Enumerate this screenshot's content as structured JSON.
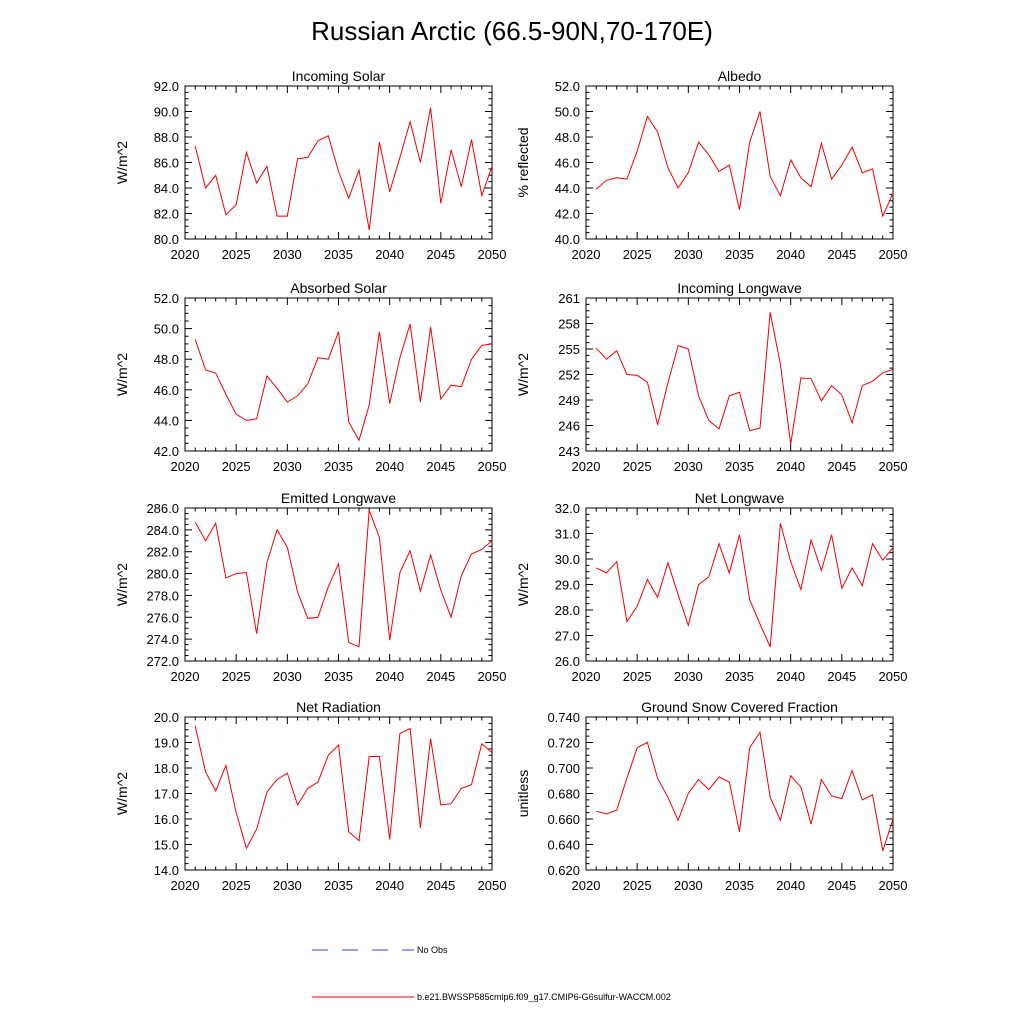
{
  "title": "Russian Arctic (66.5-90N,70-170E)",
  "colors": {
    "model": "#ee0000",
    "obs": "#3344cc",
    "axis": "#000000"
  },
  "legend": {
    "obs_label": "No Obs",
    "model_label": "b.e21.BWSSP585cmip6.f09_g17.CMIP6-G6sulfur-WACCM.002"
  },
  "chart_data": [
    {
      "type": "line",
      "title": "Incoming Solar",
      "xlabel": "",
      "ylabel": "W/m^2",
      "xlim": [
        2020,
        2050
      ],
      "ylim": [
        80,
        92
      ],
      "xticks": [
        2020,
        2025,
        2030,
        2035,
        2040,
        2045,
        2050
      ],
      "yticks": [
        "80.0",
        "82.0",
        "84.0",
        "86.0",
        "88.0",
        "90.0",
        "92.0"
      ],
      "grid": false,
      "x": [
        2021,
        2022,
        2023,
        2024,
        2025,
        2026,
        2027,
        2028,
        2029,
        2030,
        2031,
        2032,
        2033,
        2034,
        2035,
        2036,
        2037,
        2038,
        2039,
        2040,
        2041,
        2042,
        2043,
        2044,
        2045,
        2046,
        2047,
        2048,
        2049,
        2050
      ],
      "series": [
        {
          "values": [
            87.3,
            84.0,
            85.0,
            81.9,
            82.7,
            86.8,
            84.4,
            85.7,
            81.8,
            81.8,
            86.3,
            86.4,
            87.7,
            88.1,
            85.3,
            83.2,
            85.4,
            80.7,
            87.6,
            83.7,
            86.4,
            89.2,
            86.0,
            90.3,
            82.8,
            87.0,
            84.1,
            87.8,
            83.4,
            85.7
          ]
        }
      ]
    },
    {
      "type": "line",
      "title": "Albedo",
      "xlabel": "",
      "ylabel": "% reflected",
      "xlim": [
        2020,
        2050
      ],
      "ylim": [
        40,
        52
      ],
      "xticks": [
        2020,
        2025,
        2030,
        2035,
        2040,
        2045,
        2050
      ],
      "yticks": [
        "40.0",
        "42.0",
        "44.0",
        "46.0",
        "48.0",
        "50.0",
        "52.0"
      ],
      "grid": false,
      "x": [
        2021,
        2022,
        2023,
        2024,
        2025,
        2026,
        2027,
        2028,
        2029,
        2030,
        2031,
        2032,
        2033,
        2034,
        2035,
        2036,
        2037,
        2038,
        2039,
        2040,
        2041,
        2042,
        2043,
        2044,
        2045,
        2046,
        2047,
        2048,
        2049,
        2050
      ],
      "series": [
        {
          "values": [
            43.9,
            44.6,
            44.8,
            44.7,
            46.9,
            49.6,
            48.4,
            45.6,
            44.0,
            45.2,
            47.6,
            46.6,
            45.3,
            45.8,
            42.3,
            47.6,
            50.0,
            44.9,
            43.4,
            46.2,
            44.8,
            44.1,
            47.5,
            44.7,
            45.8,
            47.2,
            45.2,
            45.5,
            41.8,
            43.6
          ]
        }
      ]
    },
    {
      "type": "line",
      "title": "Absorbed Solar",
      "xlabel": "",
      "ylabel": "W/m^2",
      "xlim": [
        2020,
        2050
      ],
      "ylim": [
        42,
        52
      ],
      "xticks": [
        2020,
        2025,
        2030,
        2035,
        2040,
        2045,
        2050
      ],
      "yticks": [
        "42.0",
        "44.0",
        "46.0",
        "48.0",
        "50.0",
        "52.0"
      ],
      "grid": false,
      "x": [
        2021,
        2022,
        2023,
        2024,
        2025,
        2026,
        2027,
        2028,
        2029,
        2030,
        2031,
        2032,
        2033,
        2034,
        2035,
        2036,
        2037,
        2038,
        2039,
        2040,
        2041,
        2042,
        2043,
        2044,
        2045,
        2046,
        2047,
        2048,
        2049,
        2050
      ],
      "series": [
        {
          "values": [
            49.3,
            47.3,
            47.1,
            45.7,
            44.4,
            44.0,
            44.1,
            46.9,
            46.1,
            45.2,
            45.6,
            46.4,
            48.1,
            48.0,
            49.8,
            43.9,
            42.7,
            45.0,
            49.8,
            45.1,
            48.1,
            50.3,
            45.2,
            50.1,
            45.4,
            46.3,
            46.2,
            48.0,
            48.9,
            49.0
          ]
        }
      ]
    },
    {
      "type": "line",
      "title": "Incoming Longwave",
      "xlabel": "",
      "ylabel": "W/m^2",
      "xlim": [
        2020,
        2050
      ],
      "ylim": [
        243,
        261
      ],
      "xticks": [
        2020,
        2025,
        2030,
        2035,
        2040,
        2045,
        2050
      ],
      "yticks": [
        "243",
        "246",
        "249",
        "252",
        "255",
        "258",
        "261"
      ],
      "grid": false,
      "x": [
        2021,
        2022,
        2023,
        2024,
        2025,
        2026,
        2027,
        2028,
        2029,
        2030,
        2031,
        2032,
        2033,
        2034,
        2035,
        2036,
        2037,
        2038,
        2039,
        2040,
        2041,
        2042,
        2043,
        2044,
        2045,
        2046,
        2047,
        2048,
        2049,
        2050
      ],
      "series": [
        {
          "values": [
            255.1,
            253.8,
            254.8,
            252.0,
            251.9,
            251.1,
            246.1,
            251.0,
            255.4,
            255.0,
            249.5,
            246.6,
            245.6,
            249.5,
            249.9,
            245.4,
            245.7,
            259.3,
            253.2,
            243.8,
            251.6,
            251.5,
            248.9,
            250.7,
            249.6,
            246.3,
            250.7,
            251.2,
            252.2,
            252.6
          ]
        }
      ]
    },
    {
      "type": "line",
      "title": "Emitted Longwave",
      "xlabel": "",
      "ylabel": "W/m^2",
      "xlim": [
        2020,
        2050
      ],
      "ylim": [
        272,
        286
      ],
      "xticks": [
        2020,
        2025,
        2030,
        2035,
        2040,
        2045,
        2050
      ],
      "yticks": [
        "272.0",
        "274.0",
        "276.0",
        "278.0",
        "280.0",
        "282.0",
        "284.0",
        "286.0"
      ],
      "grid": false,
      "x": [
        2021,
        2022,
        2023,
        2024,
        2025,
        2026,
        2027,
        2028,
        2029,
        2030,
        2031,
        2032,
        2033,
        2034,
        2035,
        2036,
        2037,
        2038,
        2039,
        2040,
        2041,
        2042,
        2043,
        2044,
        2045,
        2046,
        2047,
        2048,
        2049,
        2050
      ],
      "series": [
        {
          "values": [
            284.7,
            283.0,
            284.6,
            279.6,
            280.0,
            280.1,
            274.5,
            281.0,
            284.0,
            282.4,
            278.3,
            275.9,
            276.0,
            278.8,
            280.9,
            273.7,
            273.3,
            285.8,
            283.3,
            273.9,
            280.1,
            282.1,
            278.4,
            281.7,
            278.5,
            276.0,
            279.8,
            281.8,
            282.2,
            283.0
          ]
        }
      ]
    },
    {
      "type": "line",
      "title": "Net Longwave",
      "xlabel": "",
      "ylabel": "W/m^2",
      "xlim": [
        2020,
        2050
      ],
      "ylim": [
        26,
        32
      ],
      "xticks": [
        2020,
        2025,
        2030,
        2035,
        2040,
        2045,
        2050
      ],
      "yticks": [
        "26.0",
        "27.0",
        "28.0",
        "29.0",
        "30.0",
        "31.0",
        "32.0"
      ],
      "grid": false,
      "x": [
        2021,
        2022,
        2023,
        2024,
        2025,
        2026,
        2027,
        2028,
        2029,
        2030,
        2031,
        2032,
        2033,
        2034,
        2035,
        2036,
        2037,
        2038,
        2039,
        2040,
        2041,
        2042,
        2043,
        2044,
        2045,
        2046,
        2047,
        2048,
        2049,
        2050
      ],
      "series": [
        {
          "values": [
            29.65,
            29.45,
            29.9,
            27.55,
            28.15,
            29.2,
            28.5,
            29.85,
            28.6,
            27.4,
            29.0,
            29.3,
            30.6,
            29.45,
            30.95,
            28.4,
            27.45,
            26.55,
            31.4,
            29.9,
            28.8,
            30.75,
            29.55,
            30.95,
            28.85,
            29.65,
            28.95,
            30.6,
            29.95,
            30.45
          ]
        }
      ]
    },
    {
      "type": "line",
      "title": "Net Radiation",
      "xlabel": "",
      "ylabel": "W/m^2",
      "xlim": [
        2020,
        2050
      ],
      "ylim": [
        14,
        20
      ],
      "xticks": [
        2020,
        2025,
        2030,
        2035,
        2040,
        2045,
        2050
      ],
      "yticks": [
        "14.0",
        "15.0",
        "16.0",
        "17.0",
        "18.0",
        "19.0",
        "20.0"
      ],
      "grid": false,
      "x": [
        2021,
        2022,
        2023,
        2024,
        2025,
        2026,
        2027,
        2028,
        2029,
        2030,
        2031,
        2032,
        2033,
        2034,
        2035,
        2036,
        2037,
        2038,
        2039,
        2040,
        2041,
        2042,
        2043,
        2044,
        2045,
        2046,
        2047,
        2048,
        2049,
        2050
      ],
      "series": [
        {
          "values": [
            19.65,
            17.85,
            17.1,
            18.1,
            16.25,
            14.85,
            15.6,
            17.05,
            17.55,
            17.8,
            16.55,
            17.2,
            17.45,
            18.5,
            18.9,
            15.5,
            15.15,
            18.45,
            18.45,
            15.2,
            19.35,
            19.55,
            15.65,
            19.15,
            16.55,
            16.6,
            17.2,
            17.35,
            18.95,
            18.6
          ]
        }
      ]
    },
    {
      "type": "line",
      "title": "Ground Snow Covered Fraction",
      "xlabel": "",
      "ylabel": "unitless",
      "xlim": [
        2020,
        2050
      ],
      "ylim": [
        0.62,
        0.74
      ],
      "xticks": [
        2020,
        2025,
        2030,
        2035,
        2040,
        2045,
        2050
      ],
      "yticks": [
        "0.620",
        "0.640",
        "0.660",
        "0.680",
        "0.700",
        "0.720",
        "0.740"
      ],
      "grid": false,
      "x": [
        2021,
        2022,
        2023,
        2024,
        2025,
        2026,
        2027,
        2028,
        2029,
        2030,
        2031,
        2032,
        2033,
        2034,
        2035,
        2036,
        2037,
        2038,
        2039,
        2040,
        2041,
        2042,
        2043,
        2044,
        2045,
        2046,
        2047,
        2048,
        2049,
        2050
      ],
      "series": [
        {
          "values": [
            0.666,
            0.664,
            0.667,
            0.692,
            0.716,
            0.72,
            0.692,
            0.677,
            0.659,
            0.68,
            0.691,
            0.683,
            0.693,
            0.689,
            0.65,
            0.716,
            0.728,
            0.677,
            0.659,
            0.694,
            0.685,
            0.656,
            0.691,
            0.678,
            0.676,
            0.698,
            0.675,
            0.679,
            0.635,
            0.66
          ]
        }
      ]
    }
  ]
}
